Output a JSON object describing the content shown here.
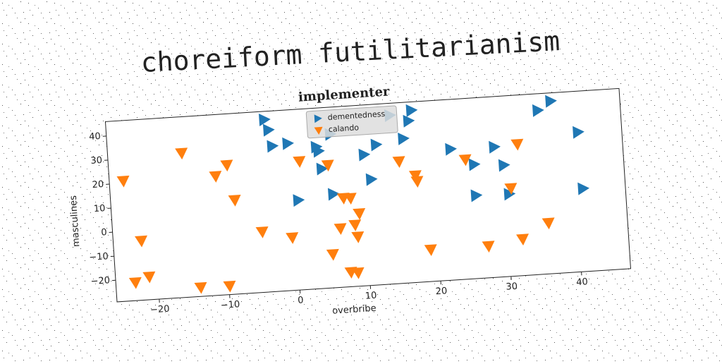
{
  "header": {
    "title": "choreiform futilitarianism"
  },
  "chart_data": {
    "type": "scatter",
    "title": "implementer",
    "xlabel": "overbribe",
    "ylabel": "masculines",
    "xlim": [
      -26,
      47
    ],
    "xticks": [
      {
        "value": -20,
        "label": "−20"
      },
      {
        "value": -10,
        "label": "−10"
      },
      0,
      10,
      20,
      30,
      40
    ],
    "ylim": [
      -29,
      46
    ],
    "yticks": [
      {
        "value": -20,
        "label": "−20"
      },
      {
        "value": -10,
        "label": "−10"
      },
      0,
      10,
      20,
      30,
      40
    ],
    "grid": false,
    "legend": "upper center",
    "series": [
      {
        "name": "dementedness",
        "color": "#1f77b4",
        "marker": "triangle-right",
        "x": [
          -3.5,
          -3.0,
          -2.6,
          -0.4,
          3.6,
          3.9,
          4.2,
          5.6,
          5.7,
          10.3,
          11.1,
          12.1,
          14.3,
          16.0,
          16.9,
          17.4,
          22.6,
          25.8,
          25.8,
          28.8,
          30.0,
          30.5,
          35.3,
          37.2,
          40.8,
          41.0,
          0.6
        ],
        "values": [
          42.6,
          38.2,
          31.4,
          32.1,
          29.9,
          28.1,
          20.7,
          9.9,
          34.8,
          25.4,
          15.0,
          29.2,
          41.0,
          31.0,
          38.2,
          42.5,
          25.4,
          18.4,
          5.5,
          25.1,
          17.3,
          5.2,
          39.1,
          42.6,
          29.0,
          5.5,
          8.3
        ]
      },
      {
        "name": "calando",
        "color": "#ff7f0e",
        "marker": "triangle-down",
        "x": [
          -24.0,
          -22.0,
          -21.2,
          -23.2,
          -15.5,
          -14.0,
          -10.9,
          -9.9,
          -9.2,
          -8.4,
          -4.8,
          -0.6,
          1.1,
          5.0,
          5.1,
          6.3,
          7.4,
          7.0,
          8.4,
          8.0,
          8.4,
          8.7,
          9.1,
          15.2,
          17.4,
          17.6,
          18.9,
          24.6,
          27.1,
          30.8,
          32.0,
          32.1,
          35.8
        ],
        "values": [
          20.9,
          -4.4,
          -19.5,
          -21.5,
          30.9,
          -25.3,
          20.4,
          -25.5,
          24.7,
          10.0,
          -3.9,
          -7.1,
          24.3,
          -15.1,
          22.0,
          -4.6,
          -23.0,
          7.9,
          -23.4,
          7.7,
          -3.5,
          -8.5,
          1.1,
          21.6,
          15.3,
          12.9,
          -15.8,
          20.6,
          -15.9,
          7.5,
          -13.9,
          25.6,
          -7.9
        ]
      }
    ]
  }
}
